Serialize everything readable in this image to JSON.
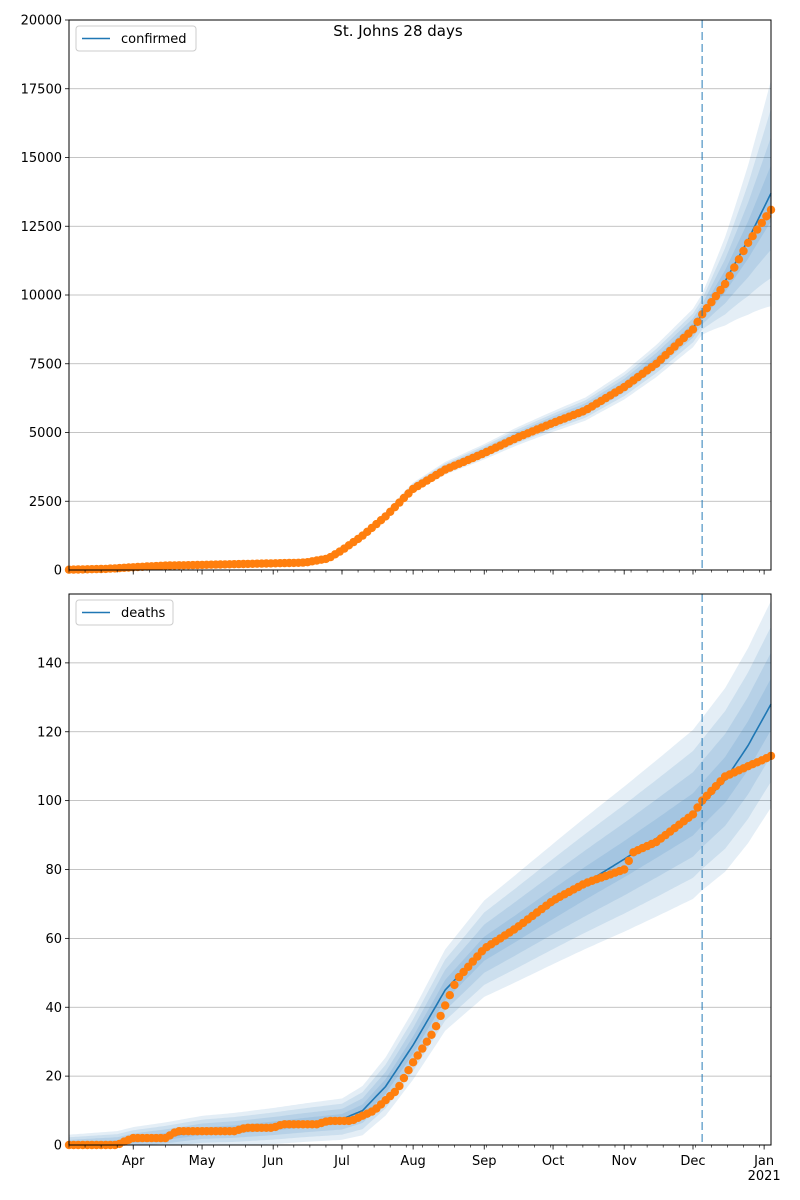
{
  "title": "St. Johns 28 days",
  "colors": {
    "model": "#1f77b4",
    "observed": "#ff7f0e",
    "band": "#1f77b4",
    "cutoff": "#1f77b4",
    "grid": "#b0b0b0"
  },
  "x_axis": {
    "start": "2020-03-04",
    "end": "2021-01-04",
    "month_ticks": [
      {
        "date": "2020-04-01",
        "label": "Apr"
      },
      {
        "date": "2020-05-01",
        "label": "May"
      },
      {
        "date": "2020-06-01",
        "label": "Jun"
      },
      {
        "date": "2020-07-01",
        "label": "Jul"
      },
      {
        "date": "2020-08-01",
        "label": "Aug"
      },
      {
        "date": "2020-09-01",
        "label": "Sep"
      },
      {
        "date": "2020-10-01",
        "label": "Oct"
      },
      {
        "date": "2020-11-01",
        "label": "Nov"
      },
      {
        "date": "2020-12-01",
        "label": "Dec"
      },
      {
        "date": "2021-01-01",
        "label": "Jan"
      }
    ],
    "year_label": "2021",
    "minor_ticks": "weekly"
  },
  "chart_data": [
    {
      "type": "line",
      "legend": "confirmed",
      "legend_position": "top-left",
      "grid": "horizontal",
      "ylim": [
        0,
        20000
      ],
      "yticks": [
        0,
        2500,
        5000,
        7500,
        10000,
        12500,
        15000,
        17500,
        20000
      ],
      "forecast_start": "2020-12-05",
      "model_points": [
        [
          "2020-03-04",
          0
        ],
        [
          "2020-03-20",
          40
        ],
        [
          "2020-04-01",
          100
        ],
        [
          "2020-04-15",
          160
        ],
        [
          "2020-05-01",
          190
        ],
        [
          "2020-05-15",
          220
        ],
        [
          "2020-06-01",
          250
        ],
        [
          "2020-06-15",
          280
        ],
        [
          "2020-06-25",
          430
        ],
        [
          "2020-07-01",
          750
        ],
        [
          "2020-07-10",
          1300
        ],
        [
          "2020-07-20",
          2000
        ],
        [
          "2020-08-01",
          3000
        ],
        [
          "2020-08-15",
          3700
        ],
        [
          "2020-09-01",
          4300
        ],
        [
          "2020-09-15",
          4850
        ],
        [
          "2020-10-01",
          5400
        ],
        [
          "2020-10-15",
          5850
        ],
        [
          "2020-11-01",
          6700
        ],
        [
          "2020-11-15",
          7600
        ],
        [
          "2020-12-01",
          8800
        ],
        [
          "2020-12-05",
          9300
        ],
        [
          "2020-12-15",
          10500
        ],
        [
          "2020-12-25",
          12000
        ],
        [
          "2021-01-04",
          13700
        ]
      ],
      "band_halfwidths": [
        [
          "2020-03-04",
          0.02
        ],
        [
          "2020-08-01",
          0.06
        ],
        [
          "2020-12-05",
          0.08
        ],
        [
          "2021-01-04",
          0.3
        ]
      ],
      "observed_points": [
        [
          "2020-03-04",
          10
        ],
        [
          "2020-03-20",
          40
        ],
        [
          "2020-04-01",
          100
        ],
        [
          "2020-04-15",
          160
        ],
        [
          "2020-05-01",
          185
        ],
        [
          "2020-05-15",
          210
        ],
        [
          "2020-06-01",
          240
        ],
        [
          "2020-06-15",
          270
        ],
        [
          "2020-06-25",
          420
        ],
        [
          "2020-07-01",
          720
        ],
        [
          "2020-07-10",
          1250
        ],
        [
          "2020-07-20",
          1950
        ],
        [
          "2020-08-01",
          2950
        ],
        [
          "2020-08-15",
          3650
        ],
        [
          "2020-09-01",
          4250
        ],
        [
          "2020-09-15",
          4800
        ],
        [
          "2020-10-01",
          5350
        ],
        [
          "2020-10-15",
          5800
        ],
        [
          "2020-11-01",
          6650
        ],
        [
          "2020-11-15",
          7500
        ],
        [
          "2020-12-01",
          8750
        ],
        [
          "2020-12-05",
          9300
        ],
        [
          "2020-12-15",
          10400
        ],
        [
          "2020-12-25",
          11900
        ],
        [
          "2021-01-04",
          13100
        ]
      ]
    },
    {
      "type": "line",
      "legend": "deaths",
      "legend_position": "top-left",
      "grid": "horizontal",
      "ylim": [
        0,
        160
      ],
      "yticks": [
        0,
        20,
        40,
        60,
        80,
        100,
        120,
        140
      ],
      "forecast_start": "2020-12-05",
      "model_points": [
        [
          "2020-03-04",
          0
        ],
        [
          "2020-03-25",
          0.5
        ],
        [
          "2020-04-01",
          1.5
        ],
        [
          "2020-04-15",
          2.5
        ],
        [
          "2020-05-01",
          4
        ],
        [
          "2020-05-15",
          4.5
        ],
        [
          "2020-06-01",
          5.5
        ],
        [
          "2020-06-15",
          6.5
        ],
        [
          "2020-07-01",
          7.5
        ],
        [
          "2020-07-10",
          10
        ],
        [
          "2020-07-20",
          17
        ],
        [
          "2020-08-01",
          29
        ],
        [
          "2020-08-15",
          45
        ],
        [
          "2020-09-01",
          57
        ],
        [
          "2020-09-15",
          63
        ],
        [
          "2020-10-01",
          70
        ],
        [
          "2020-10-15",
          76
        ],
        [
          "2020-11-01",
          83
        ],
        [
          "2020-11-15",
          89
        ],
        [
          "2020-12-01",
          96
        ],
        [
          "2020-12-05",
          99
        ],
        [
          "2020-12-15",
          106
        ],
        [
          "2020-12-25",
          116
        ],
        [
          "2021-01-04",
          128
        ]
      ],
      "band_halfwidths": [
        [
          "2020-03-04",
          3
        ],
        [
          "2020-07-01",
          6
        ],
        [
          "2020-09-01",
          14
        ],
        [
          "2020-12-05",
          25
        ],
        [
          "2021-01-04",
          30
        ]
      ],
      "observed_points": [
        [
          "2020-03-04",
          0
        ],
        [
          "2020-03-25",
          0
        ],
        [
          "2020-03-28",
          1
        ],
        [
          "2020-04-01",
          2
        ],
        [
          "2020-04-15",
          2
        ],
        [
          "2020-04-20",
          4
        ],
        [
          "2020-05-15",
          4
        ],
        [
          "2020-05-20",
          5
        ],
        [
          "2020-06-01",
          5
        ],
        [
          "2020-06-05",
          6
        ],
        [
          "2020-06-20",
          6
        ],
        [
          "2020-06-25",
          7
        ],
        [
          "2020-07-05",
          7
        ],
        [
          "2020-07-15",
          10
        ],
        [
          "2020-07-25",
          16
        ],
        [
          "2020-08-01",
          24
        ],
        [
          "2020-08-10",
          33
        ],
        [
          "2020-08-20",
          48
        ],
        [
          "2020-09-01",
          57
        ],
        [
          "2020-09-15",
          63
        ],
        [
          "2020-10-01",
          71
        ],
        [
          "2020-10-15",
          76
        ],
        [
          "2020-11-01",
          80
        ],
        [
          "2020-11-05",
          85
        ],
        [
          "2020-11-15",
          88
        ],
        [
          "2020-12-01",
          96
        ],
        [
          "2020-12-05",
          100
        ],
        [
          "2020-12-15",
          107
        ],
        [
          "2020-12-25",
          110
        ],
        [
          "2021-01-01",
          112
        ],
        [
          "2021-01-04",
          113
        ]
      ]
    }
  ]
}
